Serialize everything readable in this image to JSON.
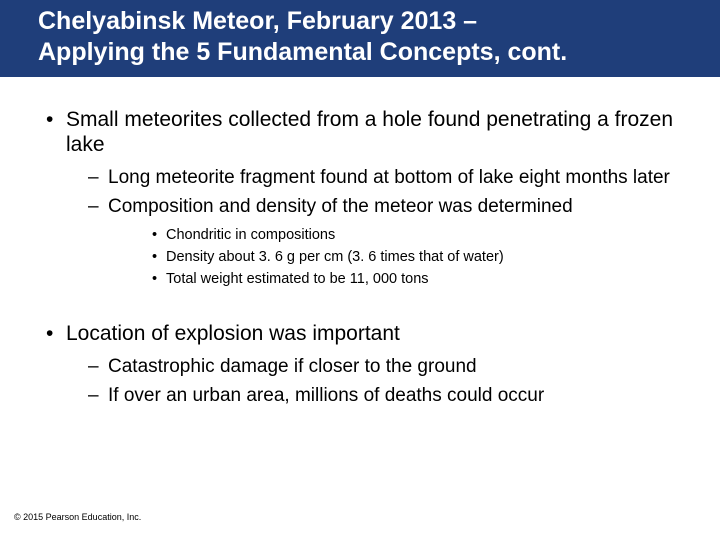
{
  "colors": {
    "title_bg": "#1f3e7a",
    "title_fg": "#ffffff",
    "body_bg": "#ffffff",
    "text": "#000000"
  },
  "typography": {
    "title_fontsize": 25,
    "lvl1_fontsize": 21,
    "lvl2_fontsize": 19,
    "lvl3_fontsize": 14.5,
    "footer_fontsize": 9,
    "font_family": "Arial",
    "title_weight": "bold"
  },
  "title": {
    "line1": "Chelyabinsk Meteor, February 2013 –",
    "line2": "Applying the 5 Fundamental Concepts, cont."
  },
  "bullets": {
    "b1": "Small meteorites collected from a hole found penetrating a frozen lake",
    "b1_sub1": "Long meteorite fragment found at bottom of lake eight months later",
    "b1_sub2": "Composition and density of the meteor was determined",
    "b1_sub2_a": "Chondritic in compositions",
    "b1_sub2_b": "Density about 3. 6 g per cm (3. 6 times that of water)",
    "b1_sub2_c": "Total weight estimated to be 11, 000 tons",
    "b2": "Location of explosion was important",
    "b2_sub1": "Catastrophic damage if closer to the ground",
    "b2_sub2": "If over an urban area, millions of deaths could occur"
  },
  "footer": "© 2015 Pearson Education, Inc."
}
